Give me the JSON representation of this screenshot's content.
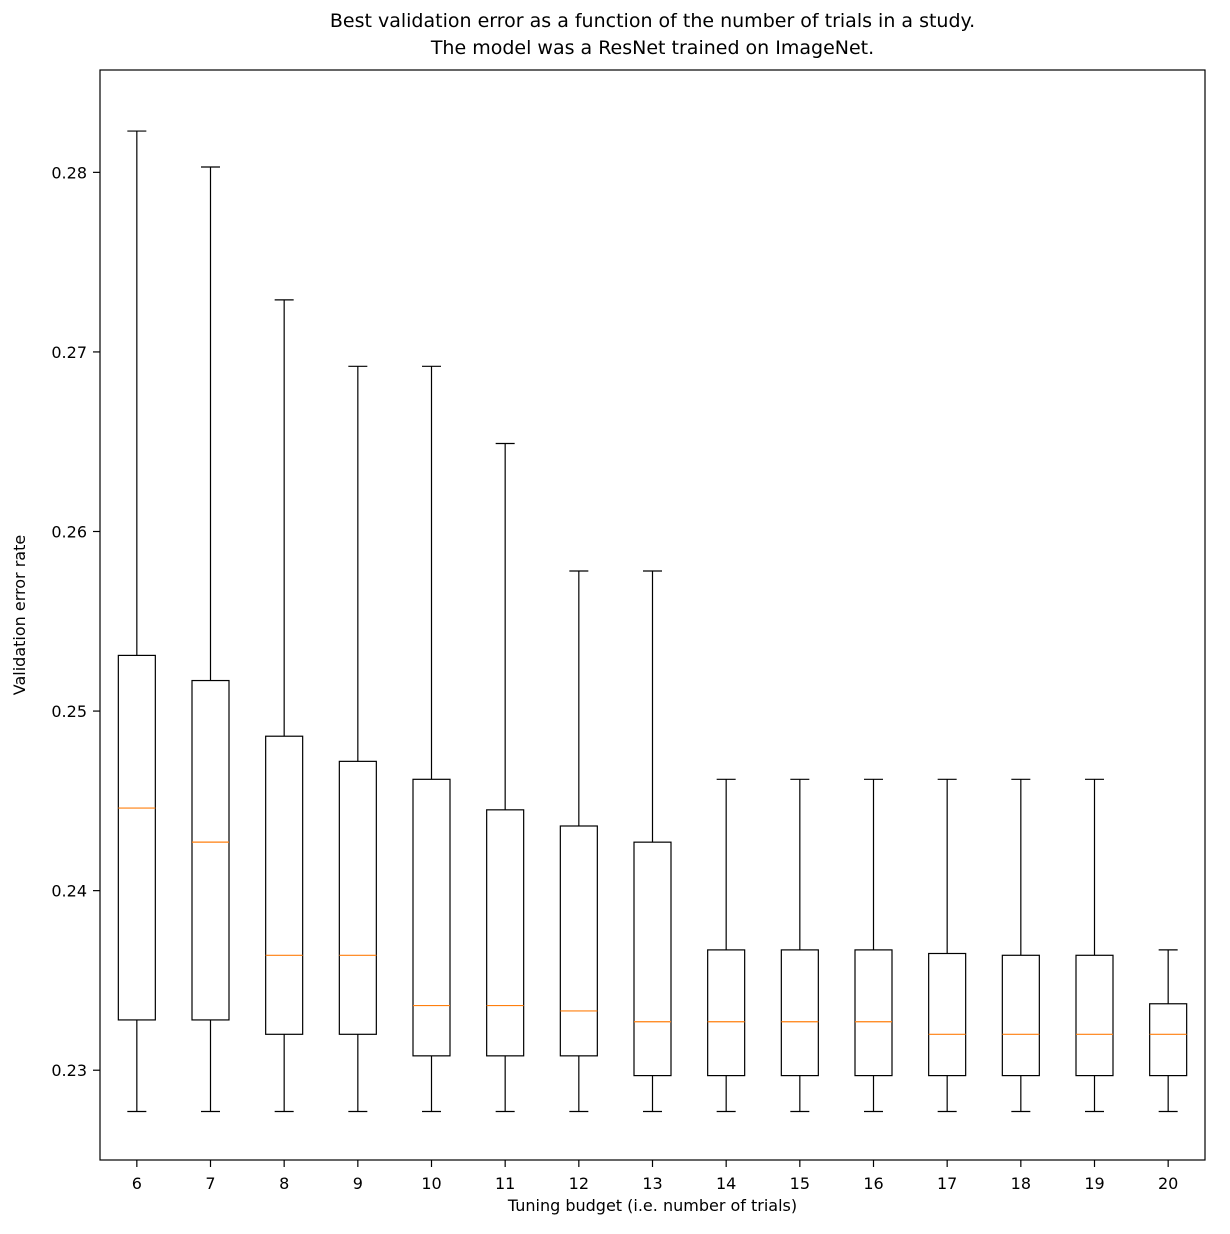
{
  "chart": {
    "title_line1": "Best validation error as a function of the number of trials in a study.",
    "title_line2": "The model was a ResNet trained on ImageNet.",
    "xlabel": "Tuning budget (i.e. number of trials)",
    "ylabel": "Validation error rate"
  },
  "chart_data": {
    "type": "boxplot",
    "title": "Best validation error as a function of the number of trials in a study. The model was a ResNet trained on ImageNet.",
    "xlabel": "Tuning budget (i.e. number of trials)",
    "ylabel": "Validation error rate",
    "categories": [
      6,
      7,
      8,
      9,
      10,
      11,
      12,
      13,
      14,
      15,
      16,
      17,
      18,
      19,
      20
    ],
    "series": [
      {
        "whislo": 0.2277,
        "q1": 0.2328,
        "med": 0.2446,
        "q3": 0.2531,
        "whishi": 0.2823
      },
      {
        "whislo": 0.2277,
        "q1": 0.2328,
        "med": 0.2427,
        "q3": 0.2517,
        "whishi": 0.2803
      },
      {
        "whislo": 0.2277,
        "q1": 0.232,
        "med": 0.2364,
        "q3": 0.2486,
        "whishi": 0.2729
      },
      {
        "whislo": 0.2277,
        "q1": 0.232,
        "med": 0.2364,
        "q3": 0.2472,
        "whishi": 0.2692
      },
      {
        "whislo": 0.2277,
        "q1": 0.2308,
        "med": 0.2336,
        "q3": 0.2462,
        "whishi": 0.2692
      },
      {
        "whislo": 0.2277,
        "q1": 0.2308,
        "med": 0.2336,
        "q3": 0.2445,
        "whishi": 0.2649
      },
      {
        "whislo": 0.2277,
        "q1": 0.2308,
        "med": 0.2333,
        "q3": 0.2436,
        "whishi": 0.2578
      },
      {
        "whislo": 0.2277,
        "q1": 0.2297,
        "med": 0.2327,
        "q3": 0.2427,
        "whishi": 0.2578
      },
      {
        "whislo": 0.2277,
        "q1": 0.2297,
        "med": 0.2327,
        "q3": 0.2367,
        "whishi": 0.2462
      },
      {
        "whislo": 0.2277,
        "q1": 0.2297,
        "med": 0.2327,
        "q3": 0.2367,
        "whishi": 0.2462
      },
      {
        "whislo": 0.2277,
        "q1": 0.2297,
        "med": 0.2327,
        "q3": 0.2367,
        "whishi": 0.2462
      },
      {
        "whislo": 0.2277,
        "q1": 0.2297,
        "med": 0.232,
        "q3": 0.2365,
        "whishi": 0.2462
      },
      {
        "whislo": 0.2277,
        "q1": 0.2297,
        "med": 0.232,
        "q3": 0.2364,
        "whishi": 0.2462
      },
      {
        "whislo": 0.2277,
        "q1": 0.2297,
        "med": 0.232,
        "q3": 0.2364,
        "whishi": 0.2462
      },
      {
        "whislo": 0.2277,
        "q1": 0.2297,
        "med": 0.232,
        "q3": 0.2337,
        "whishi": 0.2367
      }
    ],
    "yticks": [
      0.23,
      0.24,
      0.25,
      0.26,
      0.27,
      0.28
    ],
    "ylim": [
      0.225,
      0.2857
    ],
    "grid": false,
    "legend": "none",
    "colors": {
      "box_edge": "#000000",
      "median_line": "#ff7f0e",
      "background": "#ffffff"
    }
  }
}
